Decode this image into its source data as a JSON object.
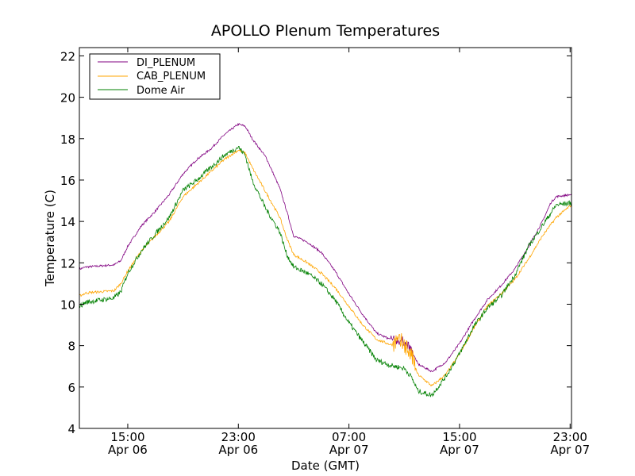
{
  "chart_data": {
    "type": "line",
    "title": "APOLLO Plenum Temperatures",
    "xlabel": "Date (GMT)",
    "ylabel": "Temperature (C)",
    "xlim": [
      11.5,
      47.1
    ],
    "ylim": [
      4,
      22.4
    ],
    "grid": false,
    "legend_position": "upper-left",
    "x_unit": "hours since Apr 06 00:00 GMT",
    "y_ticks": [
      4,
      6,
      8,
      10,
      12,
      14,
      16,
      18,
      20,
      22
    ],
    "x_ticks": [
      {
        "x": 15,
        "time": "15:00",
        "date": "Apr 06"
      },
      {
        "x": 23,
        "time": "23:00",
        "date": "Apr 06"
      },
      {
        "x": 31,
        "time": "07:00",
        "date": "Apr 07"
      },
      {
        "x": 39,
        "time": "15:00",
        "date": "Apr 07"
      },
      {
        "x": 47,
        "time": "23:00",
        "date": "Apr 07"
      }
    ],
    "series": [
      {
        "name": "DI_PLENUM",
        "color": "#800080",
        "noise": 0.05,
        "points": [
          [
            11.5,
            11.7
          ],
          [
            12,
            11.8
          ],
          [
            13,
            11.85
          ],
          [
            14,
            11.9
          ],
          [
            14.5,
            12.1
          ],
          [
            15,
            12.8
          ],
          [
            16,
            13.8
          ],
          [
            17,
            14.5
          ],
          [
            18,
            15.3
          ],
          [
            19,
            16.3
          ],
          [
            20,
            17.0
          ],
          [
            21,
            17.5
          ],
          [
            22,
            18.2
          ],
          [
            23,
            18.7
          ],
          [
            23.5,
            18.6
          ],
          [
            24,
            18.0
          ],
          [
            25,
            17.1
          ],
          [
            26,
            15.6
          ],
          [
            26.5,
            14.5
          ],
          [
            27,
            13.3
          ],
          [
            28,
            13.0
          ],
          [
            29,
            12.5
          ],
          [
            30,
            11.6
          ],
          [
            31,
            10.5
          ],
          [
            32,
            9.5
          ],
          [
            33,
            8.6
          ],
          [
            34,
            8.3
          ],
          [
            35,
            8.2
          ],
          [
            35.5,
            7.8
          ],
          [
            36,
            7.1
          ],
          [
            37,
            6.75
          ],
          [
            38,
            7.2
          ],
          [
            39,
            8.1
          ],
          [
            40,
            9.2
          ],
          [
            41,
            10.2
          ],
          [
            42,
            10.9
          ],
          [
            43,
            11.7
          ],
          [
            44,
            12.8
          ],
          [
            45,
            14.0
          ],
          [
            45.6,
            14.9
          ],
          [
            46,
            15.2
          ],
          [
            47.1,
            15.3
          ]
        ]
      },
      {
        "name": "CAB_PLENUM",
        "color": "#ffa500",
        "noise": 0.06,
        "points": [
          [
            11.5,
            10.4
          ],
          [
            12,
            10.55
          ],
          [
            13,
            10.6
          ],
          [
            14,
            10.65
          ],
          [
            14.5,
            11.0
          ],
          [
            15,
            11.6
          ],
          [
            16,
            12.6
          ],
          [
            17,
            13.3
          ],
          [
            18,
            14.0
          ],
          [
            19,
            15.2
          ],
          [
            20,
            15.8
          ],
          [
            21,
            16.4
          ],
          [
            22,
            17.0
          ],
          [
            23,
            17.45
          ],
          [
            23.5,
            17.3
          ],
          [
            24,
            16.6
          ],
          [
            25,
            15.4
          ],
          [
            26,
            14.2
          ],
          [
            26.5,
            13.2
          ],
          [
            27,
            12.4
          ],
          [
            28,
            12.0
          ],
          [
            29,
            11.5
          ],
          [
            30,
            10.8
          ],
          [
            31,
            9.9
          ],
          [
            32,
            9.0
          ],
          [
            33,
            8.3
          ],
          [
            34,
            8.05
          ],
          [
            35,
            8.0
          ],
          [
            35.5,
            7.4
          ],
          [
            36,
            6.6
          ],
          [
            37,
            6.05
          ],
          [
            38,
            6.6
          ],
          [
            39,
            7.6
          ],
          [
            40,
            8.8
          ],
          [
            41,
            9.9
          ],
          [
            42,
            10.5
          ],
          [
            43,
            11.2
          ],
          [
            44,
            12.2
          ],
          [
            45,
            13.3
          ],
          [
            46,
            14.2
          ],
          [
            47.1,
            14.8
          ]
        ]
      },
      {
        "name": "Dome Air",
        "color": "#008000",
        "noise": 0.12,
        "points": [
          [
            11.5,
            9.9
          ],
          [
            12,
            10.1
          ],
          [
            13,
            10.2
          ],
          [
            14,
            10.3
          ],
          [
            14.5,
            10.6
          ],
          [
            15,
            11.5
          ],
          [
            16,
            12.6
          ],
          [
            17,
            13.4
          ],
          [
            18,
            14.2
          ],
          [
            19,
            15.5
          ],
          [
            20,
            16.0
          ],
          [
            21,
            16.6
          ],
          [
            22,
            17.2
          ],
          [
            23,
            17.6
          ],
          [
            23.5,
            17.2
          ],
          [
            24,
            16.0
          ],
          [
            25,
            14.6
          ],
          [
            26,
            13.5
          ],
          [
            26.5,
            12.4
          ],
          [
            27,
            11.8
          ],
          [
            28,
            11.5
          ],
          [
            29,
            11.0
          ],
          [
            30,
            10.2
          ],
          [
            31,
            9.1
          ],
          [
            32,
            8.2
          ],
          [
            33,
            7.3
          ],
          [
            34,
            7.05
          ],
          [
            35,
            6.9
          ],
          [
            35.5,
            6.5
          ],
          [
            36,
            5.8
          ],
          [
            37,
            5.6
          ],
          [
            38,
            6.5
          ],
          [
            39,
            7.6
          ],
          [
            40,
            8.9
          ],
          [
            41,
            9.8
          ],
          [
            42,
            10.4
          ],
          [
            43,
            11.4
          ],
          [
            44,
            12.8
          ],
          [
            45,
            13.8
          ],
          [
            46,
            14.8
          ],
          [
            47.1,
            14.9
          ]
        ]
      }
    ],
    "spikes": {
      "series": "CAB_PLENUM",
      "x_start": 34.2,
      "x_end": 35.8,
      "amplitude": 0.45
    }
  }
}
